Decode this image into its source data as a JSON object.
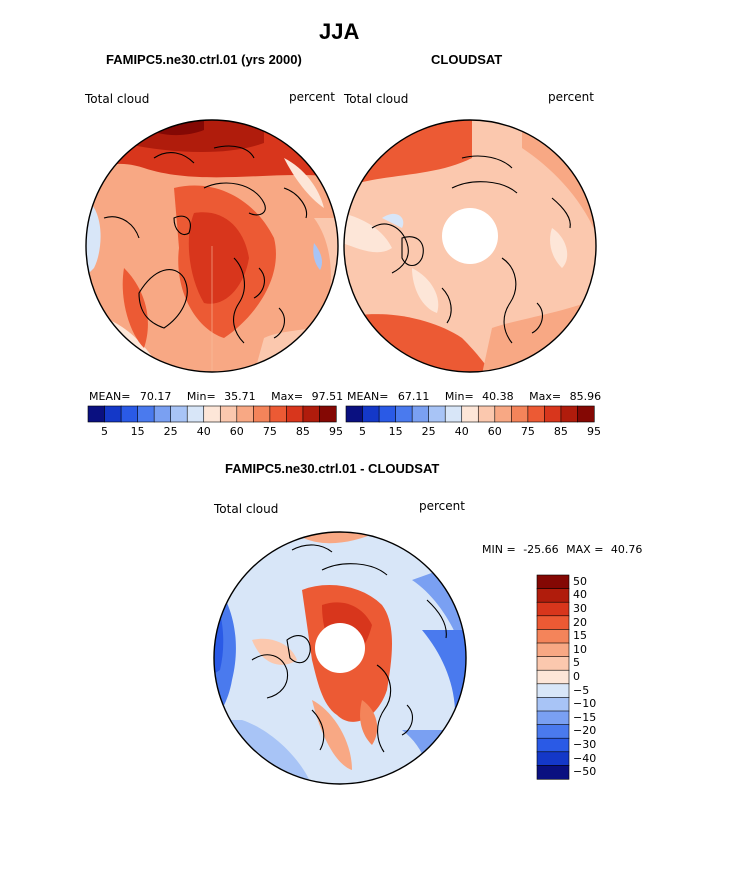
{
  "main_title": "JJA",
  "panel_model": {
    "title": "FAMIPC5.ne30.ctrl.01 (yrs 2000)",
    "variable": "Total cloud",
    "units": "percent",
    "stats": {
      "mean_label": "MEAN=",
      "mean": "70.17",
      "min_label": "Min=",
      "min": "35.71",
      "max_label": "Max=",
      "max": "97.51"
    }
  },
  "panel_obs": {
    "title": "CLOUDSAT",
    "variable": "Total cloud",
    "units": "percent",
    "stats": {
      "mean_label": "MEAN=",
      "mean": "67.11",
      "min_label": "Min=",
      "min": "40.38",
      "max_label": "Max=",
      "max": "85.96"
    }
  },
  "colorbar_top": {
    "ticks": [
      "5",
      "15",
      "25",
      "40",
      "60",
      "75",
      "85",
      "95"
    ],
    "colors": [
      "#0a1080",
      "#1438c8",
      "#2a5ae6",
      "#4a7aee",
      "#7aa0f2",
      "#a8c4f6",
      "#d8e6f8",
      "#fde6d8",
      "#fbc8ae",
      "#f8a884",
      "#f4845a",
      "#ec5a34",
      "#d8361c",
      "#b01c0c",
      "#840804"
    ]
  },
  "panel_diff": {
    "title": "FAMIPC5.ne30.ctrl.01 - CLOUDSAT",
    "variable": "Total cloud",
    "units": "percent",
    "minmax": {
      "min_label": "MIN =",
      "min": "-25.66",
      "max_label": "MAX =",
      "max": "40.76"
    }
  },
  "colorbar_diff": {
    "labels": [
      "50",
      "40",
      "30",
      "20",
      "15",
      "10",
      "5",
      "0",
      "−5",
      "−10",
      "−15",
      "−20",
      "−30",
      "−40",
      "−50"
    ],
    "colors": [
      "#840804",
      "#b01c0c",
      "#d8361c",
      "#ec5a34",
      "#f4845a",
      "#f8a884",
      "#fbc8ae",
      "#fde6d8",
      "#d8e6f8",
      "#a8c4f6",
      "#7aa0f2",
      "#4a7aee",
      "#2a5ae6",
      "#1438c8",
      "#0a1080"
    ]
  }
}
